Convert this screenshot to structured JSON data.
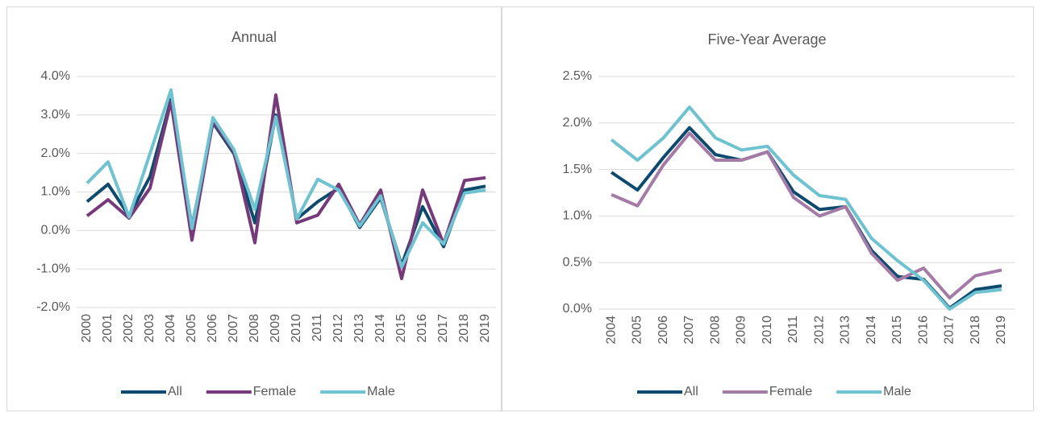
{
  "chart_data": [
    {
      "type": "line",
      "title": "Annual",
      "categories": [
        "2000",
        "2001",
        "2002",
        "2003",
        "2004",
        "2005",
        "2006",
        "2007",
        "2008",
        "2009",
        "2010",
        "2011",
        "2012",
        "2013",
        "2014",
        "2015",
        "2016",
        "2017",
        "2018",
        "2019"
      ],
      "series": [
        {
          "name": "All",
          "color": "#0e4a6e",
          "values": [
            0.75,
            1.2,
            0.38,
            1.4,
            3.4,
            0.1,
            2.8,
            2.0,
            0.2,
            3.0,
            0.3,
            0.75,
            1.1,
            0.08,
            0.85,
            -0.9,
            0.62,
            -0.42,
            1.05,
            1.15
          ]
        },
        {
          "name": "Female",
          "color": "#763a7a",
          "values": [
            0.38,
            0.8,
            0.32,
            1.1,
            3.35,
            -0.25,
            2.85,
            2.05,
            -0.32,
            3.52,
            0.2,
            0.4,
            1.2,
            0.15,
            1.05,
            -1.25,
            1.05,
            -0.35,
            1.3,
            1.37
          ]
        },
        {
          "name": "Male",
          "color": "#6fc2d0",
          "values": [
            1.23,
            1.78,
            0.35,
            2.0,
            3.65,
            0.05,
            2.93,
            2.1,
            0.55,
            2.95,
            0.3,
            1.33,
            1.05,
            0.12,
            0.9,
            -0.95,
            0.2,
            -0.35,
            0.97,
            1.05
          ]
        }
      ],
      "ylim": [
        -2,
        4
      ],
      "yticks": [
        {
          "value": -2,
          "label": "-2.0%"
        },
        {
          "value": -1,
          "label": "-1.0%"
        },
        {
          "value": 0,
          "label": "0.0%"
        },
        {
          "value": 1,
          "label": "1.0%"
        },
        {
          "value": 2,
          "label": "2.0%"
        },
        {
          "value": 3,
          "label": "3.0%"
        },
        {
          "value": 4,
          "label": "4.0%"
        }
      ],
      "grid": true,
      "legend": "bottom"
    },
    {
      "type": "line",
      "title": "Five-Year Average",
      "categories": [
        "2004",
        "2005",
        "2006",
        "2007",
        "2008",
        "2009",
        "2010",
        "2011",
        "2012",
        "2013",
        "2014",
        "2015",
        "2016",
        "2017",
        "2018",
        "2019"
      ],
      "series": [
        {
          "name": "All",
          "color": "#0e4a6e",
          "values": [
            1.47,
            1.28,
            1.63,
            1.95,
            1.66,
            1.6,
            1.69,
            1.26,
            1.07,
            1.1,
            0.63,
            0.35,
            0.32,
            0.01,
            0.21,
            0.25
          ]
        },
        {
          "name": "Female",
          "color": "#a47aa6",
          "values": [
            1.23,
            1.11,
            1.55,
            1.89,
            1.6,
            1.6,
            1.69,
            1.2,
            1.0,
            1.1,
            0.6,
            0.31,
            0.44,
            0.12,
            0.36,
            0.42
          ]
        },
        {
          "name": "Male",
          "color": "#6fc2d0",
          "values": [
            1.82,
            1.6,
            1.84,
            2.17,
            1.84,
            1.71,
            1.75,
            1.44,
            1.22,
            1.18,
            0.76,
            0.52,
            0.31,
            0.0,
            0.18,
            0.21
          ]
        }
      ],
      "ylim": [
        0,
        2.5
      ],
      "yticks": [
        {
          "value": 0,
          "label": "0.0%"
        },
        {
          "value": 0.5,
          "label": "0.5%"
        },
        {
          "value": 1,
          "label": "1.0%"
        },
        {
          "value": 1.5,
          "label": "1.5%"
        },
        {
          "value": 2,
          "label": "2.0%"
        },
        {
          "value": 2.5,
          "label": "2.5%"
        }
      ],
      "grid": true,
      "legend": "bottom"
    }
  ]
}
